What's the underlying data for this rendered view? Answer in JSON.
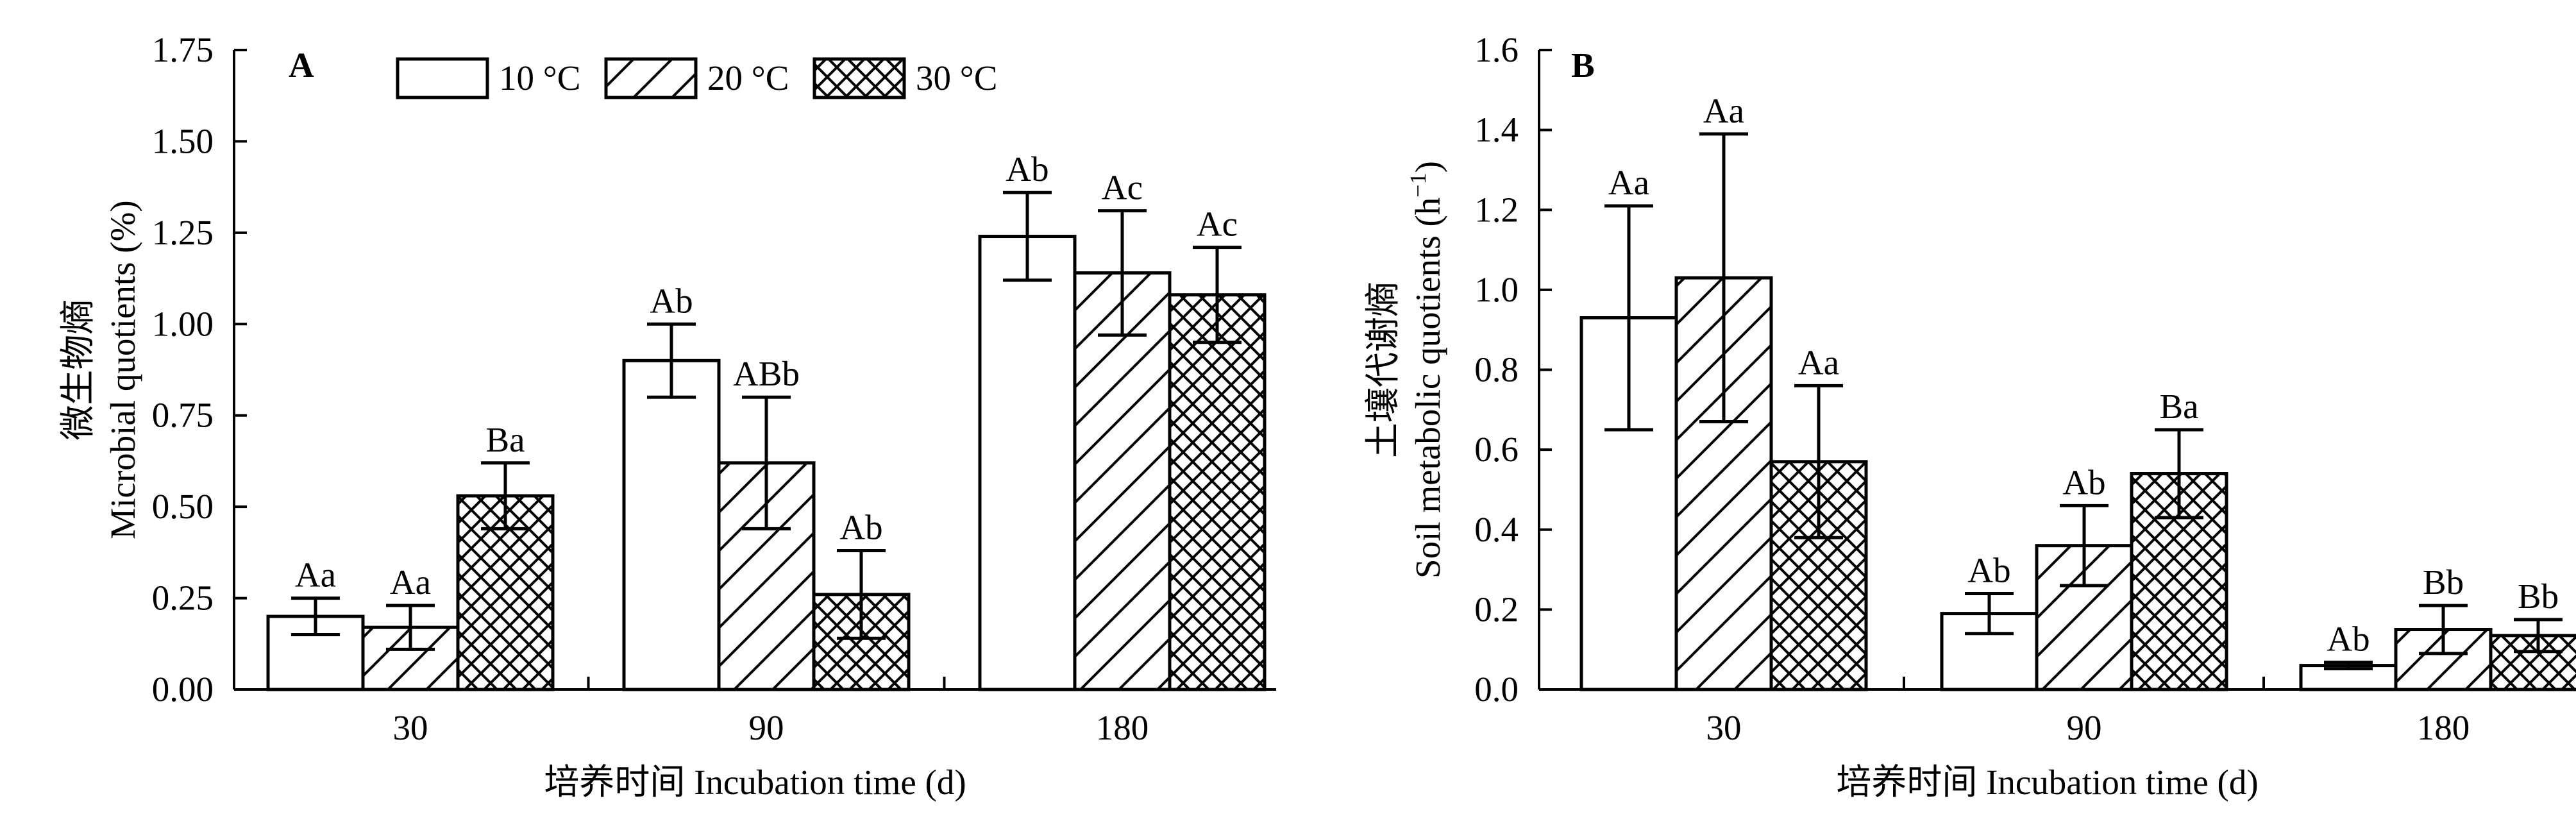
{
  "legend": [
    {
      "label": "10 °C",
      "pattern": "blank"
    },
    {
      "label": "20 °C",
      "pattern": "diagonal"
    },
    {
      "label": "30 °C",
      "pattern": "crosshatch"
    }
  ],
  "colors": {
    "bar_fill": "#ffffff",
    "stroke": "#000000"
  },
  "chart_data": [
    {
      "type": "bar",
      "panel": "A",
      "xlabel": "培养时间 Incubation time (d)",
      "ylabel_cn": "微生物熵",
      "ylabel_en": "Microbial quotients (%)",
      "categories": [
        "30",
        "90",
        "180"
      ],
      "ylim": [
        0,
        1.75
      ],
      "yticks": [
        "0.00",
        "0.25",
        "0.50",
        "0.75",
        "1.00",
        "1.25",
        "1.50",
        "1.75"
      ],
      "grid": false,
      "legend_position": "top",
      "series": [
        {
          "name": "10 °C",
          "values": [
            0.2,
            0.9,
            1.24
          ],
          "errors": [
            0.05,
            0.1,
            0.12
          ],
          "labels": [
            "Aa",
            "Ab",
            "Ab"
          ]
        },
        {
          "name": "20 °C",
          "values": [
            0.17,
            0.62,
            1.14
          ],
          "errors": [
            0.06,
            0.18,
            0.17
          ],
          "labels": [
            "Aa",
            "ABb",
            "Ac"
          ]
        },
        {
          "name": "30 °C",
          "values": [
            0.53,
            0.26,
            1.08
          ],
          "errors": [
            0.09,
            0.12,
            0.13
          ],
          "labels": [
            "Ba",
            "Ab",
            "Ac"
          ]
        }
      ]
    },
    {
      "type": "bar",
      "panel": "B",
      "xlabel": "培养时间 Incubation time (d)",
      "ylabel_cn": "土壤代谢熵",
      "ylabel_en": "Soil metabolic quotients (h",
      "ylabel_sup": "−1",
      "ylabel_close": ")",
      "categories": [
        "30",
        "90",
        "180"
      ],
      "ylim": [
        0,
        1.6
      ],
      "yticks": [
        "0.0",
        "0.2",
        "0.4",
        "0.6",
        "0.8",
        "1.0",
        "1.2",
        "1.4",
        "1.6"
      ],
      "grid": false,
      "series": [
        {
          "name": "10 °C",
          "values": [
            0.93,
            0.19,
            0.06
          ],
          "errors": [
            0.28,
            0.05,
            0.008
          ],
          "labels": [
            "Aa",
            "Ab",
            "Ab"
          ]
        },
        {
          "name": "20 °C",
          "values": [
            1.03,
            0.36,
            0.15
          ],
          "errors": [
            0.36,
            0.1,
            0.06
          ],
          "labels": [
            "Aa",
            "Ab",
            "Bb"
          ]
        },
        {
          "name": "30 °C",
          "values": [
            0.57,
            0.54,
            0.135
          ],
          "errors": [
            0.19,
            0.11,
            0.04
          ],
          "labels": [
            "Aa",
            "Ba",
            "Bb"
          ]
        }
      ]
    }
  ]
}
